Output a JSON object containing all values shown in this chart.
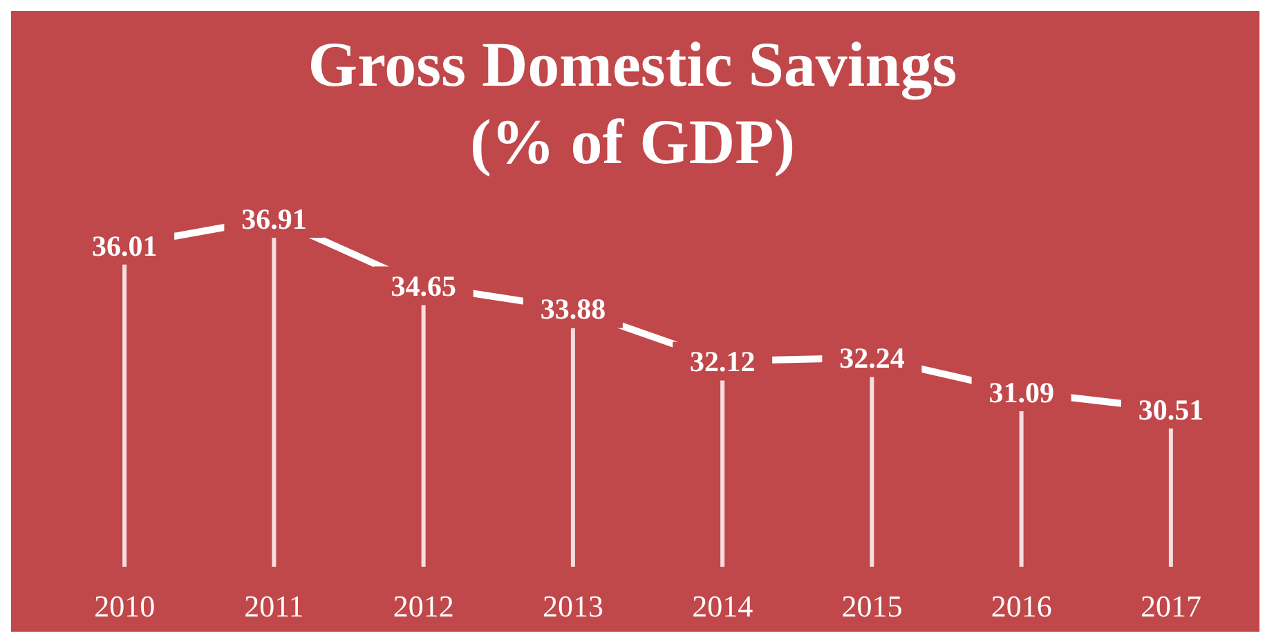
{
  "chart_data": {
    "type": "line",
    "title": "Gross Domestic Savings\n(% of GDP)",
    "categories": [
      "2010",
      "2011",
      "2012",
      "2013",
      "2014",
      "2015",
      "2016",
      "2017"
    ],
    "series": [
      {
        "color": "#ffffff",
        "values": [
          36.01,
          36.91,
          34.65,
          33.88,
          32.12,
          32.24,
          31.09,
          30.51
        ]
      }
    ],
    "tick_labels": "x",
    "data_labels": true,
    "grid": "x",
    "line_style": "solid"
  }
}
